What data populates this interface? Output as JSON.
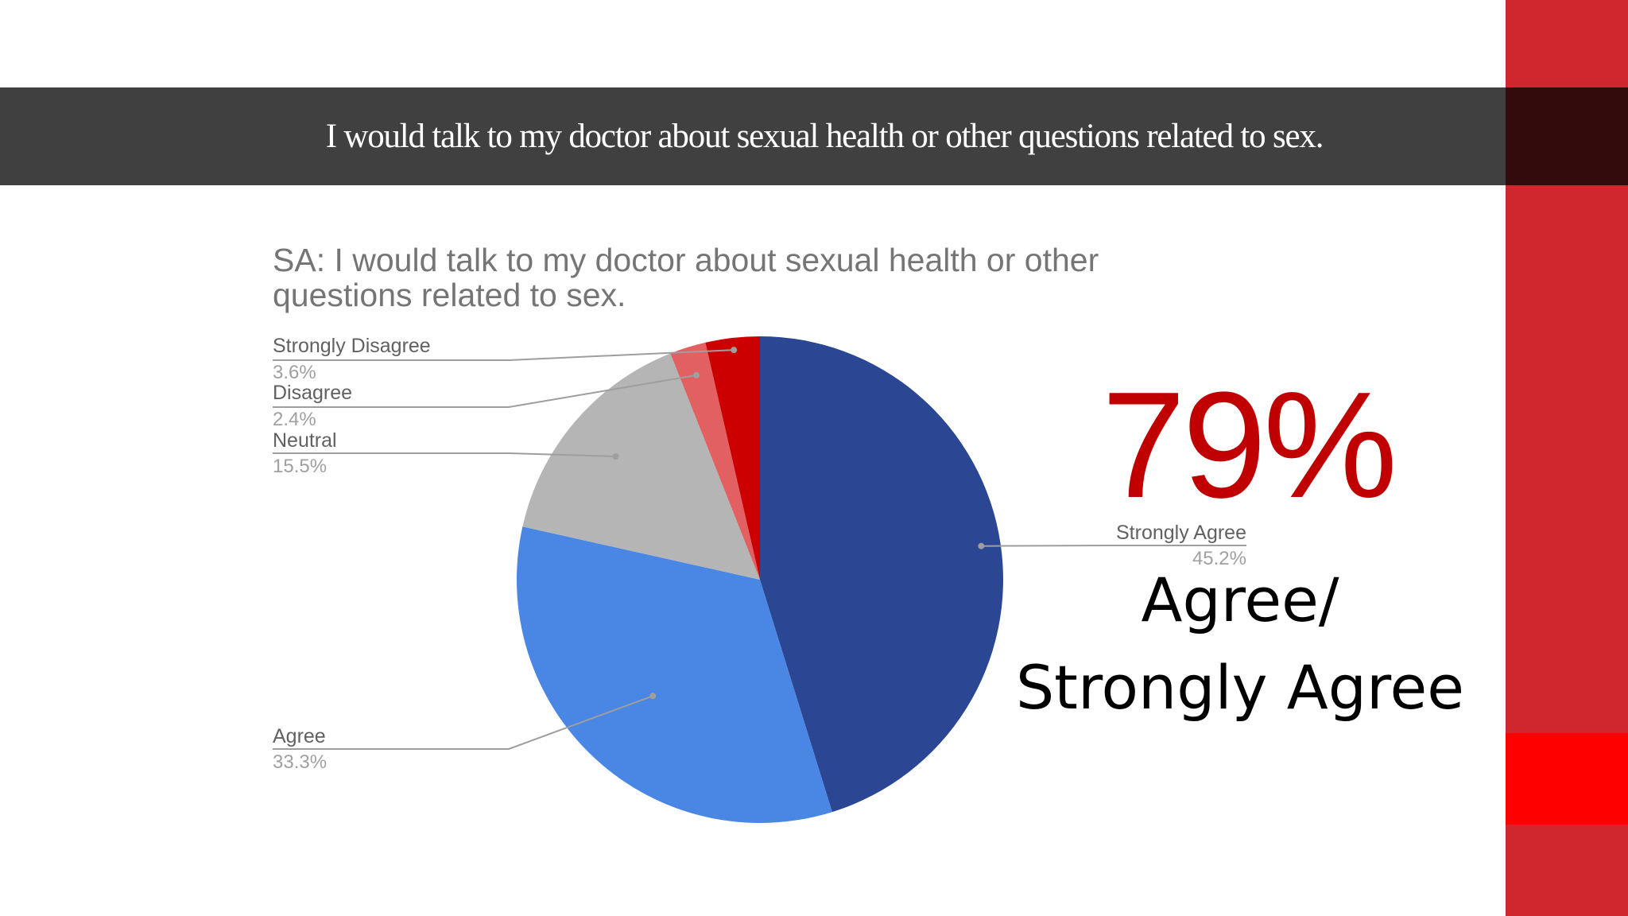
{
  "slide": {
    "heading": "I would talk to my doctor about sexual health or other questions related to sex.",
    "highlight_value": "79%",
    "highlight_caption_line1": "Agree/",
    "highlight_caption_line2": "Strongly Agree"
  },
  "colors": {
    "accent_red": "#c00000",
    "sidebar_red": "#d0262d",
    "title_bar": "#404040"
  },
  "chart_data": {
    "type": "pie",
    "title": "SA: I would talk to my doctor about sexual health or other questions related to sex.",
    "slices": [
      {
        "label": "Strongly Agree",
        "value": 45.2,
        "value_label": "45.2%",
        "color": "#2b4693"
      },
      {
        "label": "Agree",
        "value": 33.3,
        "value_label": "33.3%",
        "color": "#4a86e4"
      },
      {
        "label": "Neutral",
        "value": 15.5,
        "value_label": "15.5%",
        "color": "#b5b5b5"
      },
      {
        "label": "Disagree",
        "value": 2.4,
        "value_label": "2.4%",
        "color": "#e26061"
      },
      {
        "label": "Strongly Disagree",
        "value": 3.6,
        "value_label": "3.6%",
        "color": "#cc0000"
      }
    ],
    "start": "12 o'clock",
    "direction": "clockwise"
  }
}
